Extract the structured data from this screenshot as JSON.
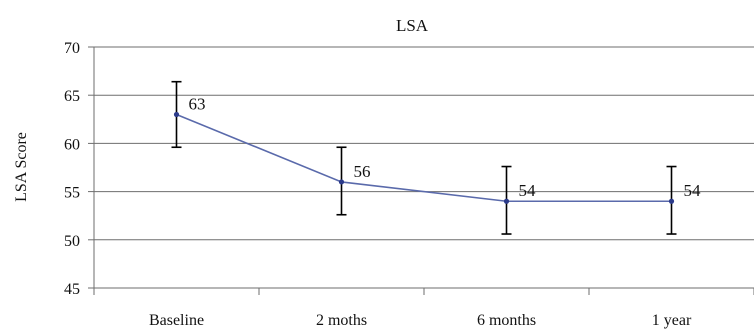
{
  "chart_data": {
    "type": "line",
    "title": "LSA",
    "xlabel": "",
    "ylabel": "LSA Score",
    "categories": [
      "Baseline",
      "2 moths",
      "6 months",
      "1 year"
    ],
    "series": [
      {
        "values": [
          63,
          56,
          54,
          54
        ],
        "error_low": [
          59.6,
          52.6,
          50.6,
          50.6
        ],
        "error_high": [
          66.4,
          59.6,
          57.6,
          57.6
        ],
        "data_labels": [
          "63",
          "56",
          "54",
          "54"
        ]
      }
    ],
    "ylim": [
      45,
      70
    ],
    "yticks": [
      45,
      50,
      55,
      60,
      65,
      70
    ],
    "ytick_labels": [
      "45",
      "50",
      "55",
      "60",
      "65",
      "70"
    ],
    "grid": true,
    "legend": "none",
    "colors": {
      "line": "#5a6aab",
      "marker": "#2b3a8a",
      "error_bar": "#000000",
      "grid": "#6e6e6e",
      "axis": "#6e6e6e"
    }
  }
}
